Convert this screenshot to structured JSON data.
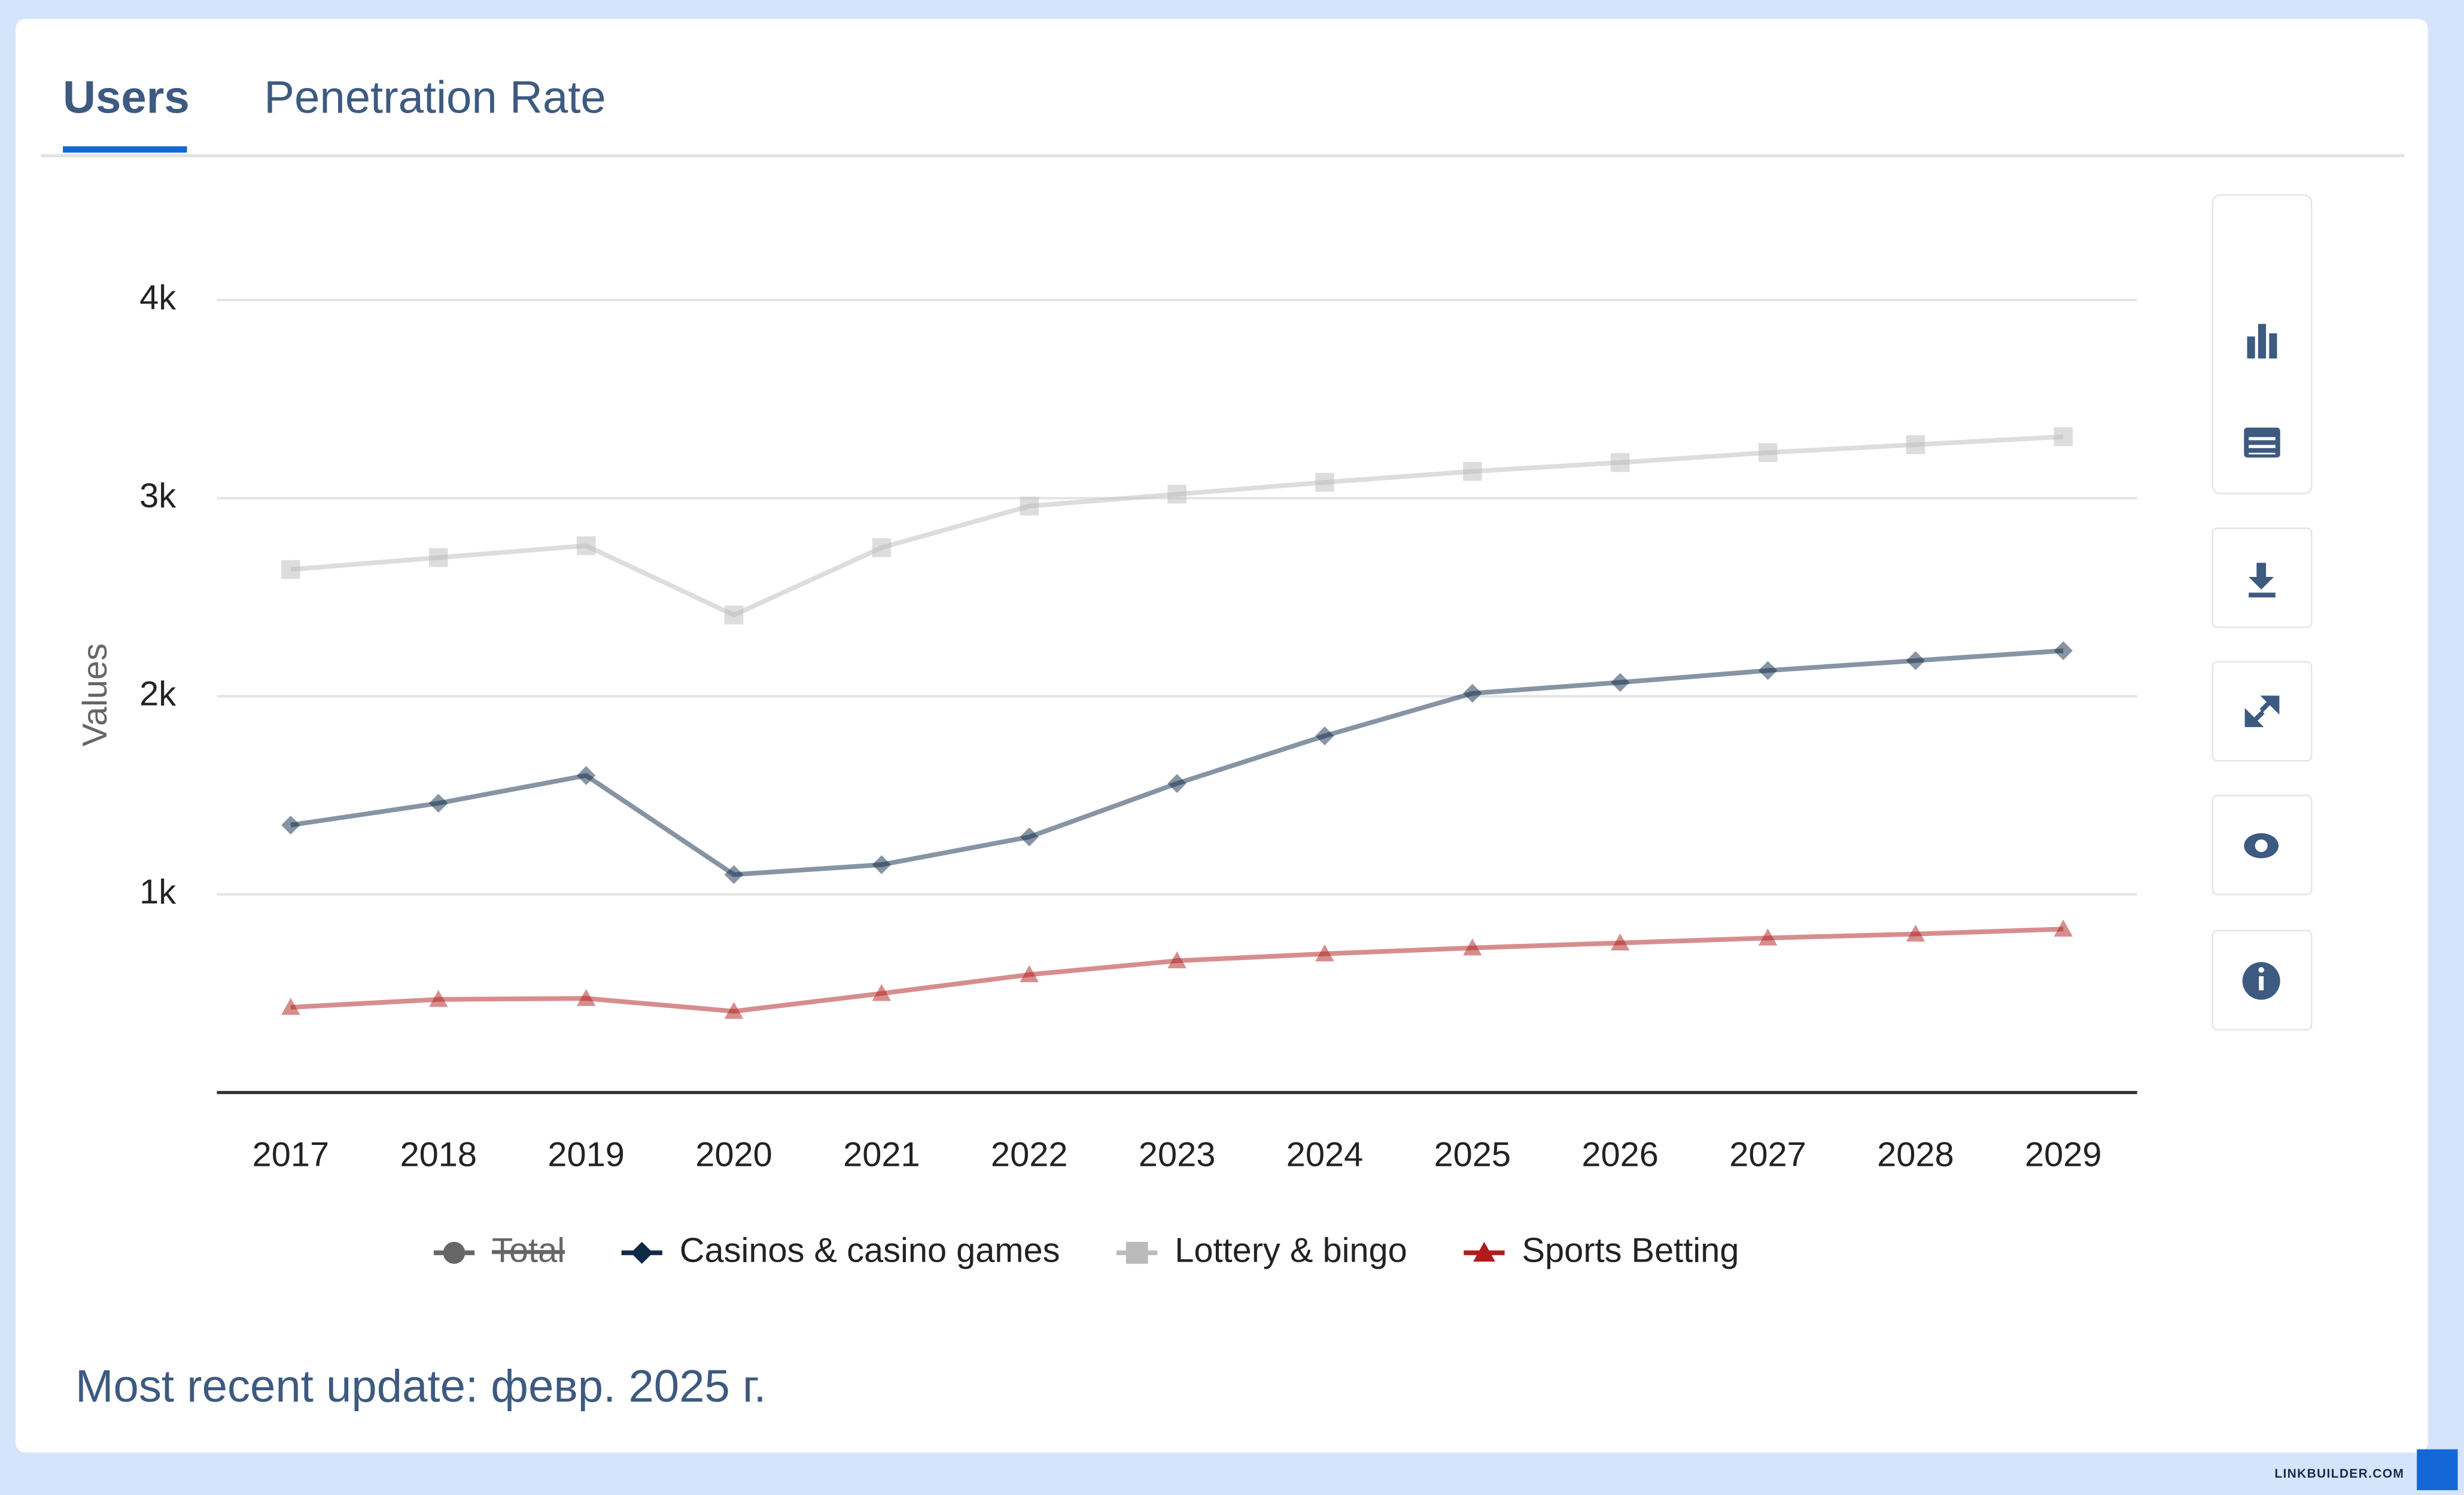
{
  "tabs": [
    "Users",
    "Penetration Rate"
  ],
  "chart_data": {
    "type": "line",
    "y_label": "Values",
    "categories": [
      "2017",
      "2018",
      "2019",
      "2020",
      "2021",
      "2022",
      "2023",
      "2024",
      "2025",
      "2026",
      "2027",
      "2028",
      "2029"
    ],
    "series": [
      {
        "name": "Total",
        "color": "#666666",
        "marker": "circle",
        "hidden": true,
        "values": [
          null,
          null,
          null,
          null,
          null,
          null,
          null,
          null,
          null,
          null,
          null,
          null,
          null
        ]
      },
      {
        "name": "Casinos & casino games",
        "color": "#0e2a47",
        "marker": "diamond",
        "values": [
          1350,
          1460,
          1600,
          1100,
          1150,
          1290,
          1560,
          1800,
          2015,
          2070,
          2130,
          2180,
          2230
        ]
      },
      {
        "name": "Lottery & bingo",
        "color": "#bbbbbb",
        "marker": "square",
        "values": [
          2640,
          2700,
          2760,
          2410,
          2750,
          2960,
          3020,
          3080,
          3135,
          3180,
          3230,
          3270,
          3310
        ]
      },
      {
        "name": "Sports Betting",
        "color": "#b01c1c",
        "marker": "triangle",
        "values": [
          430,
          470,
          475,
          410,
          500,
          595,
          665,
          700,
          730,
          755,
          780,
          800,
          825
        ]
      }
    ],
    "ylim": [
      0,
      4300
    ],
    "yticks": [
      {
        "value": 1000,
        "label": "1k"
      },
      {
        "value": 2000,
        "label": "2k"
      },
      {
        "value": 3000,
        "label": "3k"
      },
      {
        "value": 4000,
        "label": "4k"
      }
    ],
    "grid": true
  },
  "footer": "Most recent update: февр. 2025 г.",
  "watermark": "LINKBUILDER.COM"
}
